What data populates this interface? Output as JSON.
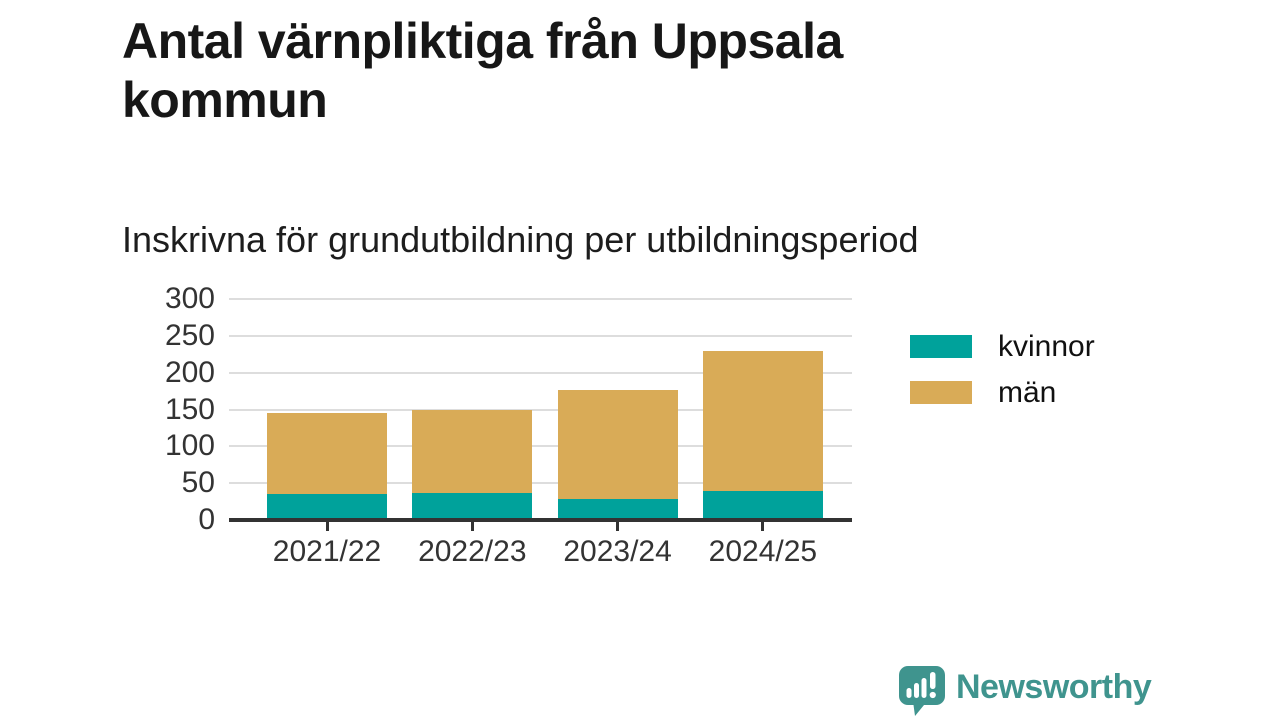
{
  "header": {
    "title": "Antal värnpliktiga från Uppsala kommun",
    "subtitle": "Inskrivna för grundutbildning per utbildningsperiod"
  },
  "chart_data": {
    "type": "bar",
    "stacked": true,
    "title": "Antal värnpliktiga från Uppsala kommun",
    "subtitle": "Inskrivna för grundutbildning per utbildningsperiod",
    "categories": [
      "2021/22",
      "2022/23",
      "2023/24",
      "2024/25"
    ],
    "series": [
      {
        "name": "kvinnor",
        "color": "#00a29b",
        "values": [
          35,
          37,
          29,
          40
        ]
      },
      {
        "name": "män",
        "color": "#d9ab57",
        "values": [
          110,
          113,
          148,
          190
        ]
      }
    ],
    "stack_totals": [
      145,
      150,
      177,
      230
    ],
    "xlabel": "",
    "ylabel": "",
    "ylim": [
      0,
      300
    ],
    "yticks": [
      0,
      50,
      100,
      150,
      200,
      250,
      300
    ],
    "grid": "horizontal",
    "gridline_color": "#dddddd",
    "axis_color": "#333333",
    "legend_position": "right-of-plot"
  },
  "legend": {
    "items": [
      {
        "label": "kvinnor",
        "color": "#00a29b"
      },
      {
        "label": "män",
        "color": "#d9ab57"
      }
    ]
  },
  "footer": {
    "brand": "Newsworthy",
    "brand_color": "#3f948e",
    "logo_icon": "bar-chart-speech-bubble-icon"
  }
}
